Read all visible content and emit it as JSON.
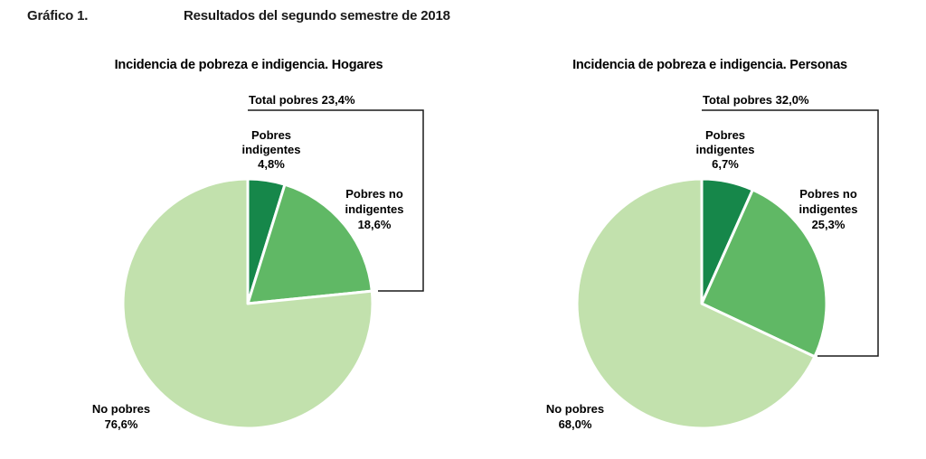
{
  "header": {
    "figure_label": "Gráfico 1.",
    "title": "Resultados del segundo semestre de 2018"
  },
  "chart_data": [
    {
      "type": "pie",
      "title": "Incidencia de pobreza e indigencia. Hogares",
      "bracket_label": "Total pobres 23,4%",
      "slices": [
        {
          "label_lines": [
            "Pobres",
            "indigentes"
          ],
          "value_text": "4,8%",
          "value": 4.8,
          "color": "#16874a"
        },
        {
          "label_lines": [
            "Pobres no",
            "indigentes"
          ],
          "value_text": "18,6%",
          "value": 18.6,
          "color": "#60b865"
        },
        {
          "label_lines": [
            "No pobres"
          ],
          "value_text": "76,6%",
          "value": 76.6,
          "color": "#c2e1ad"
        }
      ]
    },
    {
      "type": "pie",
      "title": "Incidencia de pobreza e indigencia. Personas",
      "bracket_label": "Total pobres 32,0%",
      "slices": [
        {
          "label_lines": [
            "Pobres",
            "indigentes"
          ],
          "value_text": "6,7%",
          "value": 6.7,
          "color": "#16874a"
        },
        {
          "label_lines": [
            "Pobres no",
            "indigentes"
          ],
          "value_text": "25,3%",
          "value": 25.3,
          "color": "#60b865"
        },
        {
          "label_lines": [
            "No pobres"
          ],
          "value_text": "68,0%",
          "value": 68.0,
          "color": "#c2e1ad"
        }
      ]
    }
  ]
}
